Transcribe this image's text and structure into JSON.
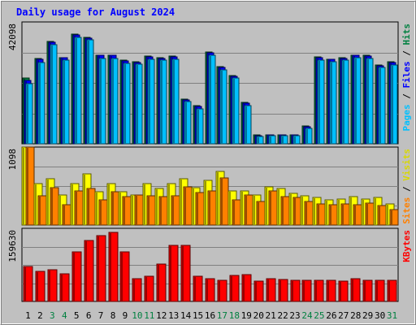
{
  "chart_data": {
    "type": "bar",
    "title": "Daily usage for August 2024",
    "categories": [
      "1",
      "2",
      "3",
      "4",
      "5",
      "6",
      "7",
      "8",
      "9",
      "10",
      "11",
      "12",
      "13",
      "14",
      "15",
      "16",
      "17",
      "18",
      "19",
      "20",
      "21",
      "22",
      "23",
      "24",
      "25",
      "26",
      "27",
      "28",
      "29",
      "30",
      "31"
    ],
    "weekend_days": [
      "3",
      "4",
      "10",
      "11",
      "17",
      "18",
      "24",
      "25",
      "31"
    ],
    "grid": true,
    "panels": [
      {
        "name": "hits-files-pages",
        "ymax_label": "42098",
        "ylim": [
          0,
          42098
        ],
        "right_labels": [
          "Pages",
          "Files",
          "Hits"
        ],
        "series": [
          {
            "name": "Hits",
            "color": "#008040",
            "values": [
              22600,
              29500,
              35300,
              29800,
              37900,
              36900,
              30700,
              30700,
              28900,
              28300,
              30300,
              29800,
              30300,
              15500,
              13200,
              31800,
              26600,
              23700,
              14200,
              3000,
              3200,
              3200,
              3200,
              6100,
              30100,
              29300,
              29800,
              30700,
              30600,
              27200,
              28300
            ]
          },
          {
            "name": "Files",
            "color": "#0000ff",
            "values": [
              21800,
              29300,
              35100,
              29700,
              37700,
              36600,
              30500,
              30500,
              28600,
              28100,
              30100,
              29600,
              30100,
              15200,
              12800,
              31500,
              26300,
              23400,
              13900,
              2900,
              3100,
              3100,
              3100,
              5800,
              29800,
              29100,
              29600,
              30500,
              30300,
              27000,
              28100
            ]
          },
          {
            "name": "Pages",
            "color": "#00c0ff",
            "values": [
              20900,
              28100,
              34300,
              28800,
              36800,
              35800,
              29500,
              29500,
              27800,
              27400,
              29300,
              28900,
              29300,
              14500,
              12200,
              30500,
              25500,
              22600,
              13200,
              2500,
              2700,
              2700,
              2700,
              5200,
              28900,
              28300,
              28800,
              29700,
              29500,
              26300,
              27300
            ]
          }
        ]
      },
      {
        "name": "visits-sites",
        "ymax_label": "1098",
        "ylim": [
          0,
          1098
        ],
        "right_labels": [
          "Sites",
          "Visits"
        ],
        "series": [
          {
            "name": "Visits",
            "color": "#ffff00",
            "values": [
              1098,
              583,
              654,
              427,
              583,
              725,
              469,
              583,
              469,
              427,
              583,
              513,
              583,
              654,
              527,
              627,
              754,
              483,
              484,
              427,
              540,
              513,
              442,
              413,
              384,
              356,
              370,
              398,
              370,
              384,
              298
            ]
          },
          {
            "name": "Sites",
            "color": "#ff8000",
            "values": [
              1098,
              413,
              527,
              284,
              483,
              513,
              356,
              470,
              399,
              427,
              413,
              398,
              413,
              542,
              456,
              484,
              669,
              356,
              427,
              327,
              484,
              399,
              384,
              327,
              299,
              284,
              299,
              284,
              313,
              270,
              213
            ]
          }
        ]
      },
      {
        "name": "kbytes",
        "ymax_label": "159630",
        "ylim": [
          0,
          159630
        ],
        "right_labels": [
          "KBytes"
        ],
        "series": [
          {
            "name": "KBytes",
            "color": "#ff0000",
            "values": [
              76400,
              66000,
              69500,
              60800,
              107500,
              133600,
              144000,
              151000,
              107500,
              50300,
              55500,
              81600,
              121500,
              121500,
              55500,
              50300,
              47000,
              57300,
              59000,
              43500,
              50300,
              48700,
              46900,
              45300,
              46900,
              45300,
              43500,
              50300,
              46900,
              45300,
              45300
            ]
          }
        ]
      }
    ]
  }
}
